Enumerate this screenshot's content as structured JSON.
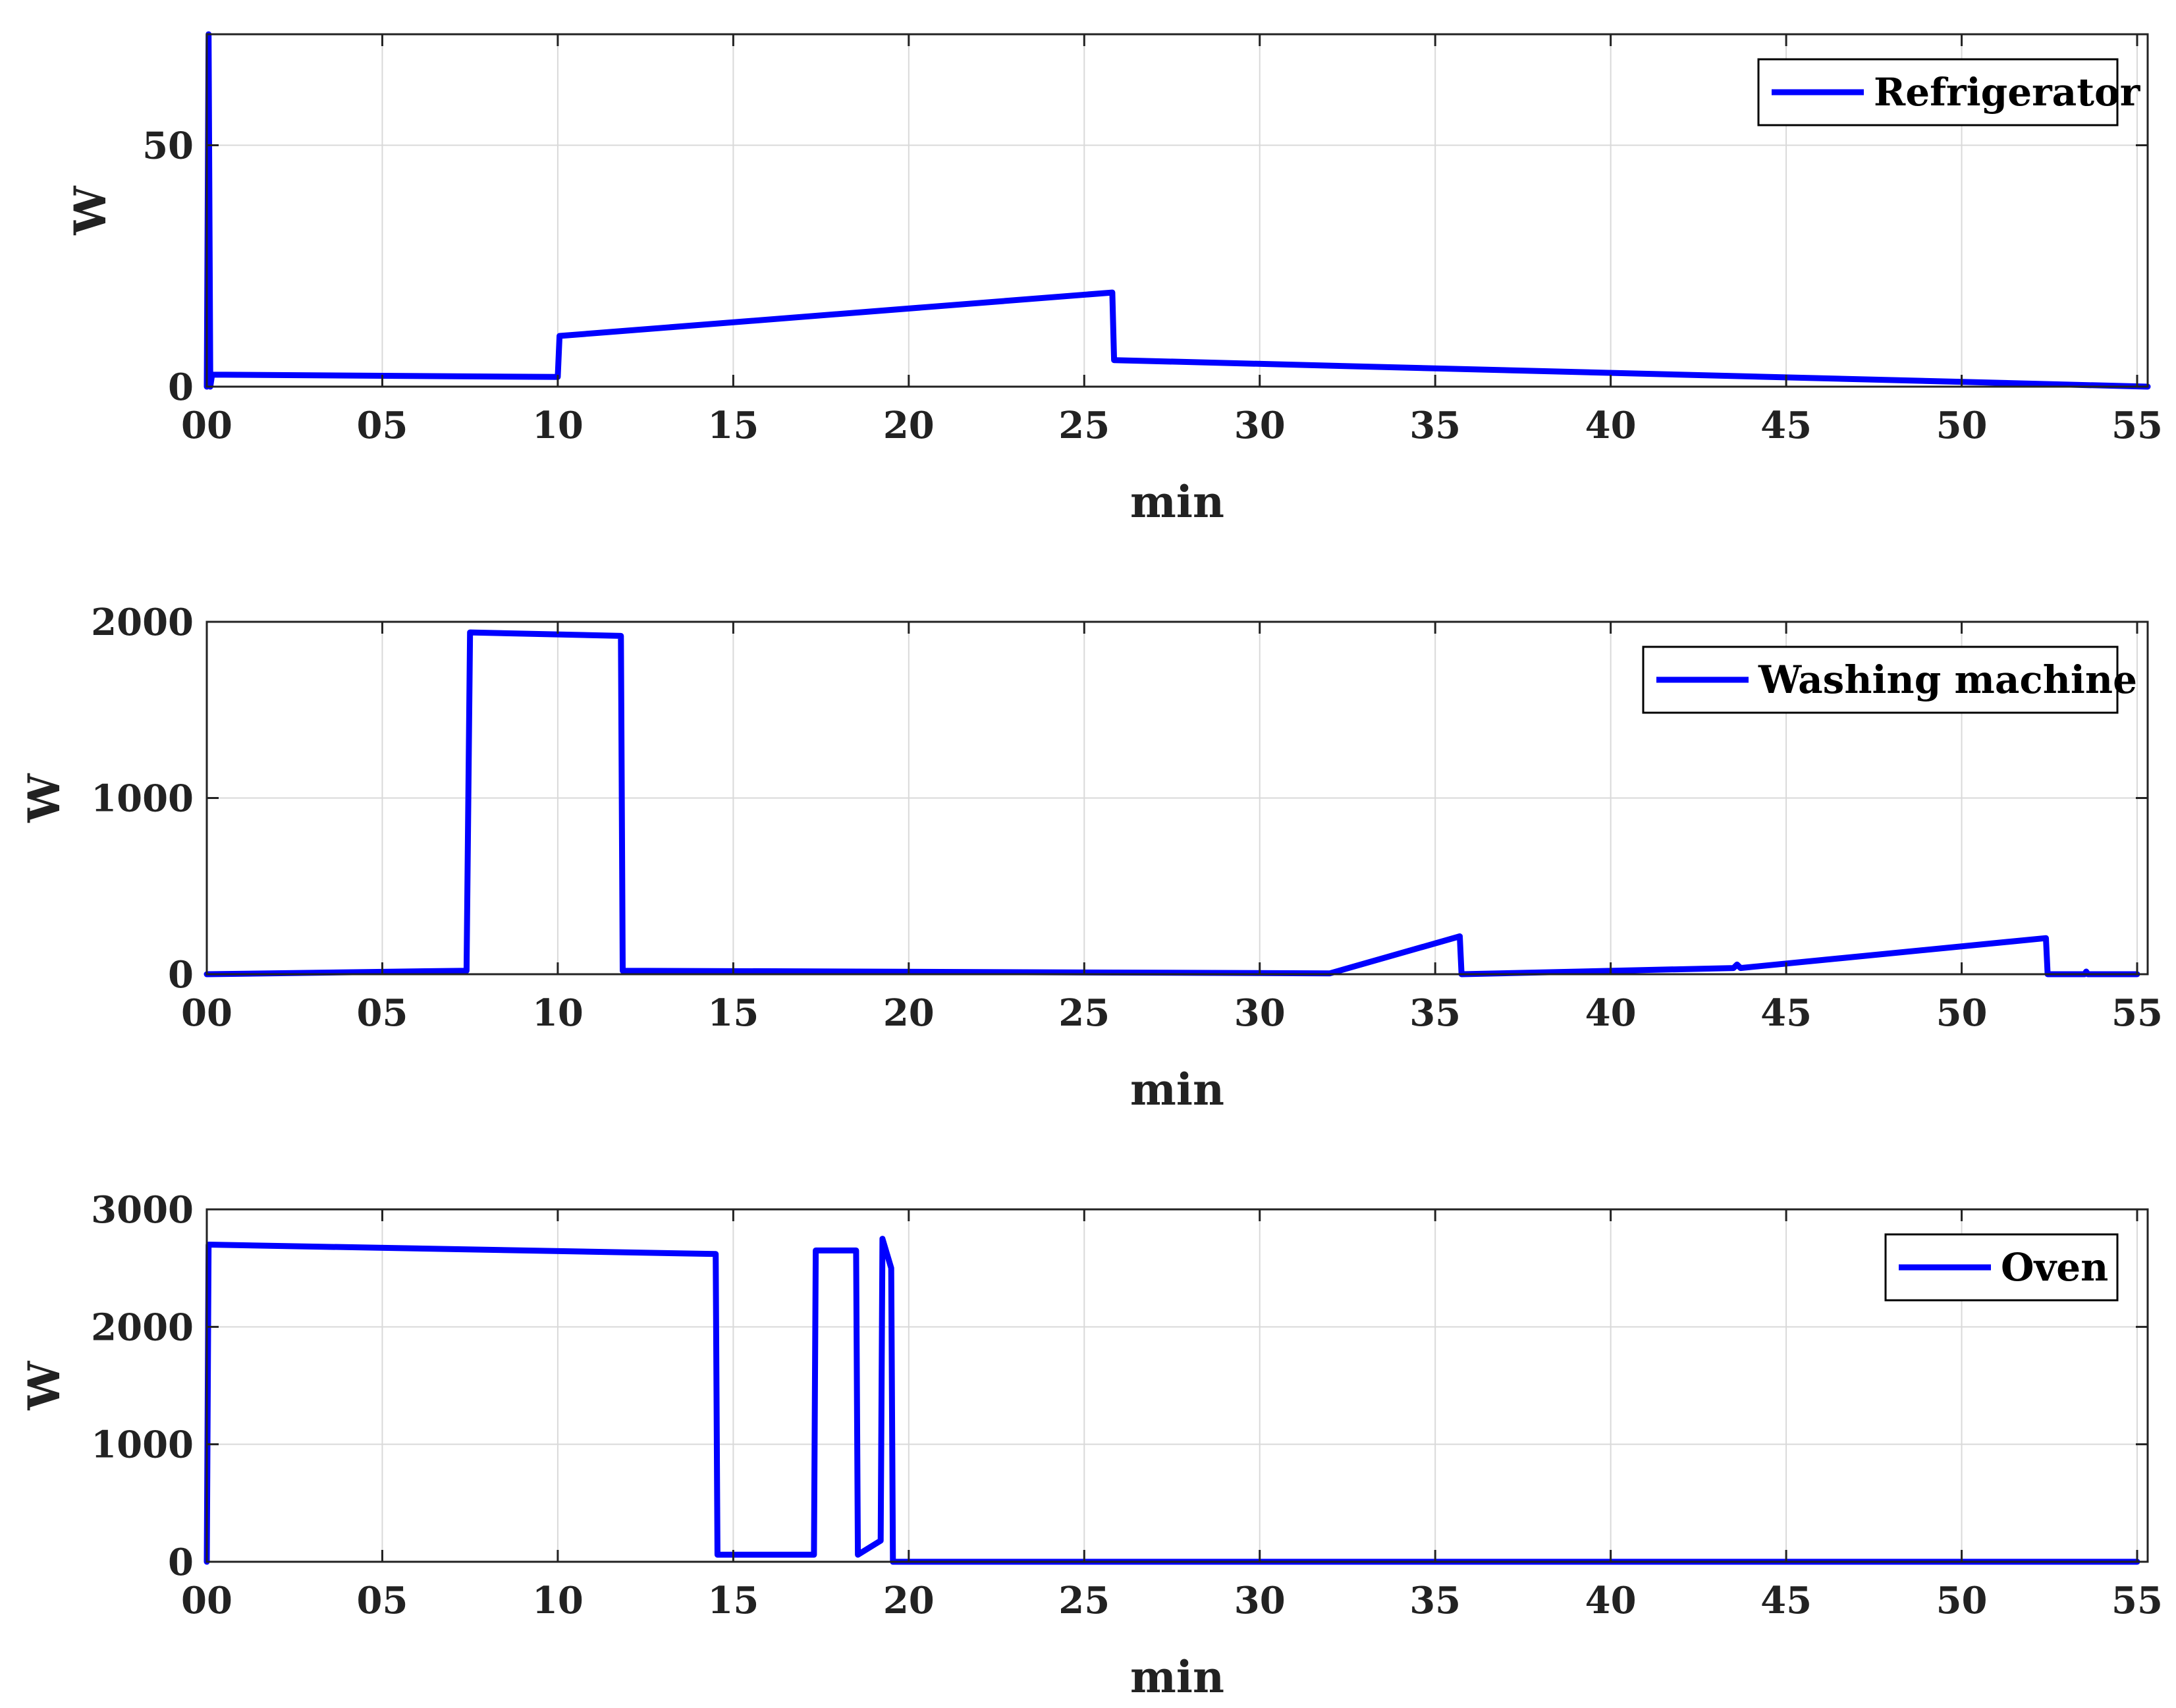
{
  "line_color": "#0000ff",
  "grid_color": "#d9d9d9",
  "axis_color": "#222222",
  "chart_data": [
    {
      "type": "line",
      "xlabel": "min",
      "ylabel": "W",
      "xlim": [
        0,
        55.3
      ],
      "ylim": [
        0,
        73
      ],
      "grid": true,
      "legend_position": "top-right",
      "x_ticks": [
        0,
        5,
        10,
        15,
        20,
        25,
        30,
        35,
        40,
        45,
        50,
        55
      ],
      "x_tick_labels": [
        "00",
        "05",
        "10",
        "15",
        "20",
        "25",
        "30",
        "35",
        "40",
        "45",
        "50",
        "55"
      ],
      "y_ticks": [
        0,
        50
      ],
      "y_tick_labels": [
        "0",
        "50"
      ],
      "series": [
        {
          "name": "Refrigerator",
          "x": [
            0.0,
            0.05,
            0.1,
            0.15,
            10.0,
            10.05,
            25.8,
            25.85,
            55.3
          ],
          "y": [
            0,
            73,
            0,
            2.5,
            2.0,
            10.5,
            19.5,
            5.5,
            0
          ]
        }
      ]
    },
    {
      "type": "line",
      "xlabel": "min",
      "ylabel": "W",
      "xlim": [
        0,
        55.3
      ],
      "ylim": [
        0,
        2000
      ],
      "grid": true,
      "legend_position": "top-right",
      "x_ticks": [
        0,
        5,
        10,
        15,
        20,
        25,
        30,
        35,
        40,
        45,
        50,
        55
      ],
      "x_tick_labels": [
        "00",
        "05",
        "10",
        "15",
        "20",
        "25",
        "30",
        "35",
        "40",
        "45",
        "50",
        "55"
      ],
      "y_ticks": [
        0,
        1000,
        2000
      ],
      "y_tick_labels": [
        "0",
        "1000",
        "2000"
      ],
      "series": [
        {
          "name": "Washing machine",
          "x": [
            0,
            7.4,
            7.5,
            11.8,
            11.85,
            32.0,
            35.7,
            35.75,
            43.5,
            43.6,
            43.7,
            52.4,
            52.45,
            53.5,
            53.55,
            53.6,
            55.0
          ],
          "y": [
            0,
            20,
            1940,
            1920,
            20,
            5,
            215,
            0,
            35,
            55,
            35,
            205,
            0,
            0,
            15,
            0,
            0
          ]
        }
      ]
    },
    {
      "type": "line",
      "xlabel": "min",
      "ylabel": "W",
      "xlim": [
        0,
        55.3
      ],
      "ylim": [
        0,
        3000
      ],
      "grid": true,
      "legend_position": "top-right",
      "x_ticks": [
        0,
        5,
        10,
        15,
        20,
        25,
        30,
        35,
        40,
        45,
        50,
        55
      ],
      "x_tick_labels": [
        "00",
        "05",
        "10",
        "15",
        "20",
        "25",
        "30",
        "35",
        "40",
        "45",
        "50",
        "55"
      ],
      "y_ticks": [
        0,
        1000,
        2000,
        3000
      ],
      "y_tick_labels": [
        "0",
        "1000",
        "2000",
        "3000"
      ],
      "series": [
        {
          "name": "Oven",
          "x": [
            0.0,
            0.05,
            14.5,
            14.55,
            17.3,
            17.35,
            18.5,
            18.55,
            19.2,
            19.25,
            19.5,
            19.55,
            55.0
          ],
          "y": [
            0,
            2700,
            2620,
            60,
            60,
            2650,
            2650,
            60,
            180,
            2750,
            2500,
            0,
            0
          ]
        }
      ]
    }
  ]
}
